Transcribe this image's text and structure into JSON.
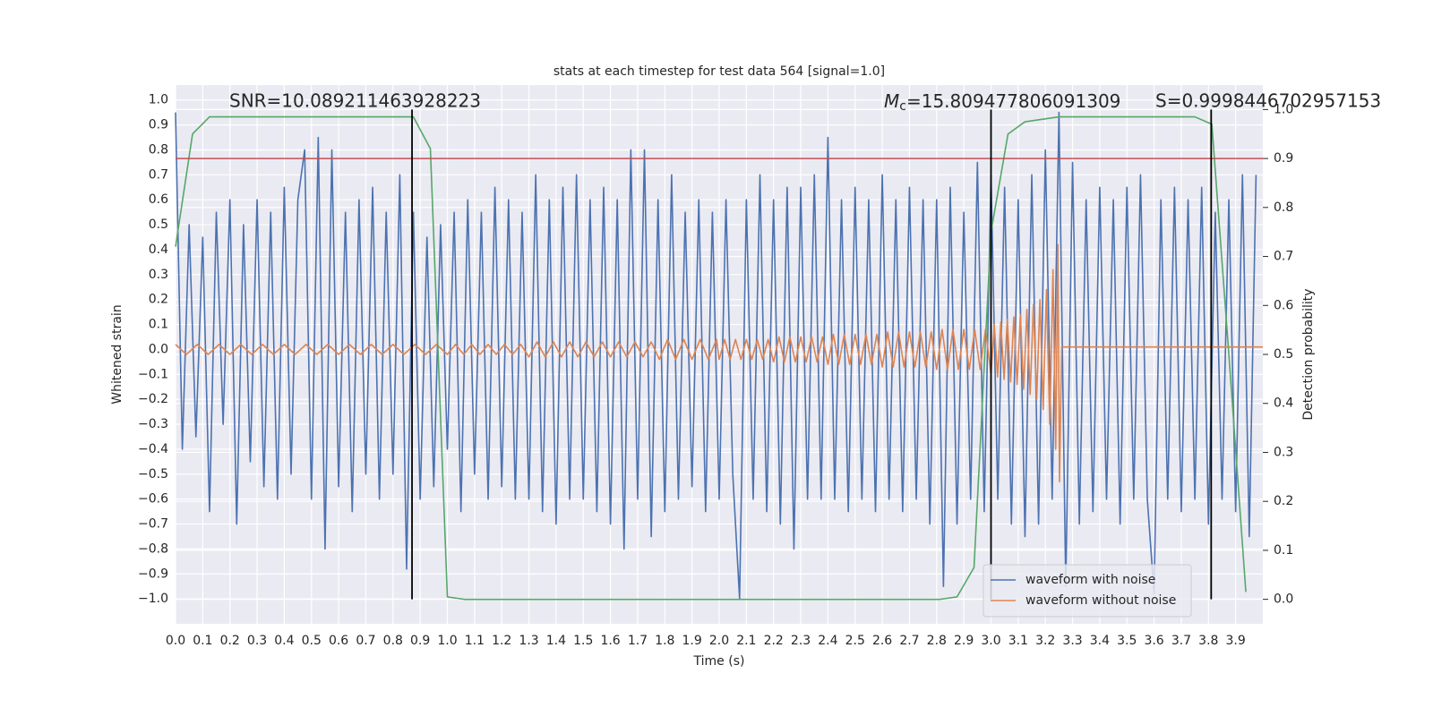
{
  "chart_data": {
    "type": "line",
    "title": "stats at each timestep for test data 564 [signal=1.0]",
    "xlabel": "Time (s)",
    "ylabel": "Whitened strain",
    "y2label": "Detection probability",
    "grid": true,
    "legend_loc": "lower right",
    "xlim": [
      0,
      4
    ],
    "ylim": [
      -1.1,
      1.06
    ],
    "y2lim": [
      -0.05,
      1.05
    ],
    "xticks": [
      {
        "value": 0,
        "label": "0.0"
      },
      {
        "value": 0.1,
        "label": "0.1"
      },
      {
        "value": 0.2,
        "label": "0.2"
      },
      {
        "value": 0.3,
        "label": "0.3"
      },
      {
        "value": 0.4,
        "label": "0.4"
      },
      {
        "value": 0.5,
        "label": "0.5"
      },
      {
        "value": 0.6,
        "label": "0.6"
      },
      {
        "value": 0.7,
        "label": "0.7"
      },
      {
        "value": 0.8,
        "label": "0.8"
      },
      {
        "value": 0.9,
        "label": "0.9"
      },
      {
        "value": 1,
        "label": "1.0"
      },
      {
        "value": 1.1,
        "label": "1.1"
      },
      {
        "value": 1.2,
        "label": "1.2"
      },
      {
        "value": 1.3,
        "label": "1.3"
      },
      {
        "value": 1.4,
        "label": "1.4"
      },
      {
        "value": 1.5,
        "label": "1.5"
      },
      {
        "value": 1.6,
        "label": "1.6"
      },
      {
        "value": 1.7,
        "label": "1.7"
      },
      {
        "value": 1.8,
        "label": "1.8"
      },
      {
        "value": 1.9,
        "label": "1.9"
      },
      {
        "value": 2,
        "label": "2.0"
      },
      {
        "value": 2.1,
        "label": "2.1"
      },
      {
        "value": 2.2,
        "label": "2.2"
      },
      {
        "value": 2.3,
        "label": "2.3"
      },
      {
        "value": 2.4,
        "label": "2.4"
      },
      {
        "value": 2.5,
        "label": "2.5"
      },
      {
        "value": 2.6,
        "label": "2.6"
      },
      {
        "value": 2.7,
        "label": "2.7"
      },
      {
        "value": 2.8,
        "label": "2.8"
      },
      {
        "value": 2.9,
        "label": "2.9"
      },
      {
        "value": 3,
        "label": "3.0"
      },
      {
        "value": 3.1,
        "label": "3.1"
      },
      {
        "value": 3.2,
        "label": "3.2"
      },
      {
        "value": 3.3,
        "label": "3.3"
      },
      {
        "value": 3.4,
        "label": "3.4"
      },
      {
        "value": 3.5,
        "label": "3.5"
      },
      {
        "value": 3.6,
        "label": "3.6"
      },
      {
        "value": 3.7,
        "label": "3.7"
      },
      {
        "value": 3.8,
        "label": "3.8"
      },
      {
        "value": 3.9,
        "label": "3.9"
      }
    ],
    "yticks": [
      {
        "value": -1,
        "label": "−1.0"
      },
      {
        "value": -0.9,
        "label": "−0.9"
      },
      {
        "value": -0.8,
        "label": "−0.8"
      },
      {
        "value": -0.7,
        "label": "−0.7"
      },
      {
        "value": -0.6,
        "label": "−0.6"
      },
      {
        "value": -0.5,
        "label": "−0.5"
      },
      {
        "value": -0.4,
        "label": "−0.4"
      },
      {
        "value": -0.3,
        "label": "−0.3"
      },
      {
        "value": -0.2,
        "label": "−0.2"
      },
      {
        "value": -0.1,
        "label": "−0.1"
      },
      {
        "value": 0,
        "label": "0.0"
      },
      {
        "value": 0.1,
        "label": "0.1"
      },
      {
        "value": 0.2,
        "label": "0.2"
      },
      {
        "value": 0.3,
        "label": "0.3"
      },
      {
        "value": 0.4,
        "label": "0.4"
      },
      {
        "value": 0.5,
        "label": "0.5"
      },
      {
        "value": 0.6,
        "label": "0.6"
      },
      {
        "value": 0.7,
        "label": "0.7"
      },
      {
        "value": 0.8,
        "label": "0.8"
      },
      {
        "value": 0.9,
        "label": "0.9"
      },
      {
        "value": 1,
        "label": "1.0"
      }
    ],
    "y2ticks": [
      {
        "value": 0,
        "label": "0.0"
      },
      {
        "value": 0.1,
        "label": "0.1"
      },
      {
        "value": 0.2,
        "label": "0.2"
      },
      {
        "value": 0.3,
        "label": "0.3"
      },
      {
        "value": 0.4,
        "label": "0.4"
      },
      {
        "value": 0.5,
        "label": "0.5"
      },
      {
        "value": 0.6,
        "label": "0.6"
      },
      {
        "value": 0.7,
        "label": "0.7"
      },
      {
        "value": 0.8,
        "label": "0.8"
      },
      {
        "value": 0.9,
        "label": "0.9"
      },
      {
        "value": 1,
        "label": "1.0"
      }
    ],
    "annotations": {
      "snr": "SNR=10.089211463928223",
      "mc_symbol": "M",
      "mc_subscript": "c",
      "mc_value": "=15.809477806091309",
      "s": "S=0.9998446702957153"
    },
    "threshold": {
      "value": 0.9,
      "axis": "y2",
      "color": "#c44e52"
    },
    "vlines": {
      "x": [
        0.87,
        3.0,
        3.81
      ],
      "ymin": 0,
      "ymax": 1,
      "axis": "y2",
      "color": "#000000"
    },
    "series": [
      {
        "name": "waveform with noise",
        "color": "#4c72b0",
        "legend": true,
        "x": [
          0,
          0.025,
          0.05,
          0.075,
          0.1,
          0.125,
          0.15,
          0.175,
          0.2,
          0.225,
          0.25,
          0.275,
          0.3,
          0.325,
          0.35,
          0.375,
          0.4,
          0.425,
          0.45,
          0.475,
          0.5,
          0.525,
          0.55,
          0.575,
          0.6,
          0.625,
          0.65,
          0.675,
          0.7,
          0.725,
          0.75,
          0.775,
          0.8,
          0.825,
          0.85,
          0.875,
          0.9,
          0.925,
          0.95,
          0.975,
          1,
          1.025,
          1.05,
          1.075,
          1.1,
          1.125,
          1.15,
          1.175,
          1.2,
          1.225,
          1.25,
          1.275,
          1.3,
          1.325,
          1.35,
          1.375,
          1.4,
          1.425,
          1.45,
          1.475,
          1.5,
          1.525,
          1.55,
          1.575,
          1.6,
          1.625,
          1.65,
          1.675,
          1.7,
          1.725,
          1.75,
          1.775,
          1.8,
          1.825,
          1.85,
          1.875,
          1.9,
          1.925,
          1.95,
          1.975,
          2,
          2.025,
          2.05,
          2.075,
          2.1,
          2.125,
          2.15,
          2.175,
          2.2,
          2.225,
          2.25,
          2.275,
          2.3,
          2.325,
          2.35,
          2.375,
          2.4,
          2.425,
          2.45,
          2.475,
          2.5,
          2.525,
          2.55,
          2.575,
          2.6,
          2.625,
          2.65,
          2.675,
          2.7,
          2.725,
          2.75,
          2.775,
          2.8,
          2.825,
          2.85,
          2.875,
          2.9,
          2.925,
          2.95,
          2.975,
          3,
          3.025,
          3.05,
          3.075,
          3.1,
          3.125,
          3.15,
          3.175,
          3.2,
          3.225,
          3.25,
          3.275,
          3.3,
          3.325,
          3.35,
          3.375,
          3.4,
          3.425,
          3.45,
          3.475,
          3.5,
          3.525,
          3.55,
          3.575,
          3.6,
          3.625,
          3.65,
          3.675,
          3.7,
          3.725,
          3.75,
          3.775,
          3.8,
          3.825,
          3.85,
          3.875,
          3.9,
          3.925,
          3.95,
          3.975
        ],
        "values": [
          0.95,
          -0.4,
          0.5,
          -0.35,
          0.45,
          -0.65,
          0.55,
          -0.3,
          0.6,
          -0.7,
          0.5,
          -0.45,
          0.6,
          -0.55,
          0.55,
          -0.6,
          0.65,
          -0.5,
          0.6,
          0.8,
          -0.6,
          0.85,
          -0.8,
          0.8,
          -0.55,
          0.55,
          -0.65,
          0.6,
          -0.5,
          0.65,
          -0.6,
          0.55,
          -0.5,
          0.7,
          -0.88,
          0.55,
          -0.6,
          0.45,
          -0.55,
          0.5,
          -0.4,
          0.55,
          -0.65,
          0.6,
          -0.5,
          0.55,
          -0.6,
          0.65,
          -0.55,
          0.6,
          -0.6,
          0.55,
          -0.6,
          0.7,
          -0.65,
          0.6,
          -0.7,
          0.65,
          -0.6,
          0.7,
          -0.6,
          0.6,
          -0.65,
          0.65,
          -0.7,
          0.6,
          -0.8,
          0.8,
          -0.6,
          0.8,
          -0.75,
          0.6,
          -0.65,
          0.7,
          -0.6,
          0.55,
          -0.55,
          0.6,
          -0.65,
          0.55,
          -0.6,
          0.6,
          -0.5,
          -1.0,
          0.6,
          -0.6,
          0.7,
          -0.65,
          0.6,
          -0.7,
          0.65,
          -0.8,
          0.65,
          -0.6,
          0.7,
          -0.6,
          0.85,
          -0.6,
          0.6,
          -0.65,
          0.65,
          -0.6,
          0.6,
          -0.65,
          0.7,
          -0.6,
          0.6,
          -0.65,
          0.65,
          -0.6,
          0.6,
          -0.7,
          0.6,
          -0.95,
          0.65,
          -0.7,
          0.55,
          -0.6,
          0.75,
          -0.65,
          0.7,
          -0.6,
          0.65,
          -0.7,
          0.6,
          -0.75,
          0.7,
          -0.7,
          0.8,
          -0.6,
          0.95,
          -0.95,
          0.75,
          -0.7,
          0.6,
          -0.65,
          0.65,
          -0.6,
          0.6,
          -0.7,
          0.65,
          -0.6,
          0.7,
          -0.6,
          -0.98,
          0.6,
          -0.6,
          0.65,
          -0.65,
          0.6,
          -0.6,
          0.65,
          -0.7,
          0.55,
          -0.6,
          0.6,
          -0.65,
          0.7,
          -0.75,
          0.7
        ]
      },
      {
        "name": "waveform without noise",
        "color": "#dd8452",
        "legend": true,
        "x": [
          0,
          0.04,
          0.08,
          0.12,
          0.16,
          0.2,
          0.24,
          0.28,
          0.32,
          0.36,
          0.4,
          0.44,
          0.48,
          0.52,
          0.56,
          0.6,
          0.64,
          0.68,
          0.72,
          0.76,
          0.8,
          0.84,
          0.88,
          0.92,
          0.96,
          1,
          1.03,
          1.06,
          1.09,
          1.12,
          1.15,
          1.18,
          1.21,
          1.24,
          1.27,
          1.3,
          1.33,
          1.36,
          1.39,
          1.42,
          1.45,
          1.48,
          1.51,
          1.54,
          1.57,
          1.6,
          1.63,
          1.66,
          1.69,
          1.72,
          1.75,
          1.78,
          1.81,
          1.84,
          1.87,
          1.9,
          1.93,
          1.96,
          1.99,
          2,
          2.02,
          2.04,
          2.06,
          2.08,
          2.1,
          2.12,
          2.14,
          2.16,
          2.18,
          2.2,
          2.22,
          2.24,
          2.26,
          2.28,
          2.3,
          2.32,
          2.34,
          2.36,
          2.38,
          2.4,
          2.42,
          2.44,
          2.46,
          2.48,
          2.5,
          2.52,
          2.54,
          2.56,
          2.58,
          2.6,
          2.62,
          2.64,
          2.66,
          2.68,
          2.7,
          2.72,
          2.74,
          2.76,
          2.78,
          2.8,
          2.82,
          2.84,
          2.86,
          2.88,
          2.9,
          2.92,
          2.94,
          2.96,
          2.98,
          3,
          3.012,
          3.024,
          3.036,
          3.048,
          3.06,
          3.072,
          3.084,
          3.096,
          3.108,
          3.12,
          3.132,
          3.144,
          3.156,
          3.168,
          3.18,
          3.192,
          3.204,
          3.216,
          3.228,
          3.238,
          3.246,
          3.252,
          3.26,
          4
        ],
        "values": [
          0.02,
          -0.02,
          0.02,
          -0.02,
          0.02,
          -0.02,
          0.02,
          -0.02,
          0.02,
          -0.02,
          0.02,
          -0.02,
          0.02,
          -0.02,
          0.02,
          -0.02,
          0.02,
          -0.02,
          0.02,
          -0.02,
          0.02,
          -0.02,
          0.02,
          -0.02,
          0.02,
          -0.02,
          0.02,
          -0.02,
          0.02,
          -0.02,
          0.02,
          -0.02,
          0.02,
          -0.02,
          0.02,
          -0.03,
          0.03,
          -0.03,
          0.03,
          -0.03,
          0.03,
          -0.03,
          0.03,
          -0.03,
          0.03,
          -0.03,
          0.03,
          -0.03,
          0.03,
          -0.03,
          0.03,
          -0.04,
          0.04,
          -0.04,
          0.04,
          -0.04,
          0.04,
          -0.04,
          0.04,
          -0.04,
          0.04,
          -0.04,
          0.04,
          -0.04,
          0.04,
          -0.04,
          0.04,
          -0.04,
          0.04,
          -0.05,
          0.05,
          -0.05,
          0.05,
          -0.05,
          0.05,
          -0.05,
          0.05,
          -0.05,
          0.05,
          -0.06,
          0.06,
          -0.06,
          0.06,
          -0.06,
          0.06,
          -0.06,
          0.06,
          -0.06,
          0.06,
          -0.07,
          0.07,
          -0.07,
          0.07,
          -0.07,
          0.07,
          -0.07,
          0.07,
          -0.07,
          0.07,
          -0.08,
          0.08,
          -0.08,
          0.08,
          -0.08,
          0.08,
          -0.08,
          0.08,
          -0.08,
          0.08,
          -0.1,
          0.1,
          -0.11,
          0.11,
          -0.12,
          0.12,
          -0.13,
          0.13,
          -0.14,
          0.14,
          -0.16,
          0.16,
          -0.18,
          0.18,
          -0.2,
          0.2,
          -0.24,
          0.24,
          -0.3,
          0.32,
          -0.4,
          0.42,
          -0.53,
          0.01,
          0.01
        ]
      },
      {
        "color": "#55a868",
        "axis": "y2",
        "legend": false,
        "x": [
          0,
          0.0625,
          0.125,
          0.1875,
          0.25,
          0.3125,
          0.375,
          0.4375,
          0.5,
          0.5625,
          0.625,
          0.6875,
          0.75,
          0.8125,
          0.875,
          0.9375,
          1,
          1.0625,
          1.125,
          1.1875,
          1.25,
          1.3125,
          1.375,
          1.4375,
          1.5,
          1.5625,
          1.625,
          1.6875,
          1.75,
          1.8125,
          1.875,
          1.9375,
          2,
          2.0625,
          2.125,
          2.1875,
          2.25,
          2.3125,
          2.375,
          2.4375,
          2.5,
          2.5625,
          2.625,
          2.6875,
          2.75,
          2.8125,
          2.875,
          2.9375,
          3,
          3.0625,
          3.125,
          3.1875,
          3.25,
          3.3125,
          3.375,
          3.4375,
          3.5,
          3.5625,
          3.625,
          3.6875,
          3.75,
          3.8125,
          3.875,
          3.9375
        ],
        "values": [
          0.72,
          0.95,
          0.985,
          0.985,
          0.985,
          0.985,
          0.985,
          0.985,
          0.985,
          0.985,
          0.985,
          0.985,
          0.985,
          0.985,
          0.985,
          0.92,
          0.005,
          0,
          0,
          0,
          0,
          0,
          0,
          0,
          0,
          0,
          0,
          0,
          0,
          0,
          0,
          0,
          0,
          0,
          0,
          0,
          0,
          0,
          0,
          0,
          0,
          0,
          0,
          0,
          0,
          0,
          0.005,
          0.065,
          0.75,
          0.95,
          0.975,
          0.98,
          0.985,
          0.985,
          0.985,
          0.985,
          0.985,
          0.985,
          0.985,
          0.985,
          0.985,
          0.97,
          0.5,
          0.015
        ]
      }
    ]
  }
}
